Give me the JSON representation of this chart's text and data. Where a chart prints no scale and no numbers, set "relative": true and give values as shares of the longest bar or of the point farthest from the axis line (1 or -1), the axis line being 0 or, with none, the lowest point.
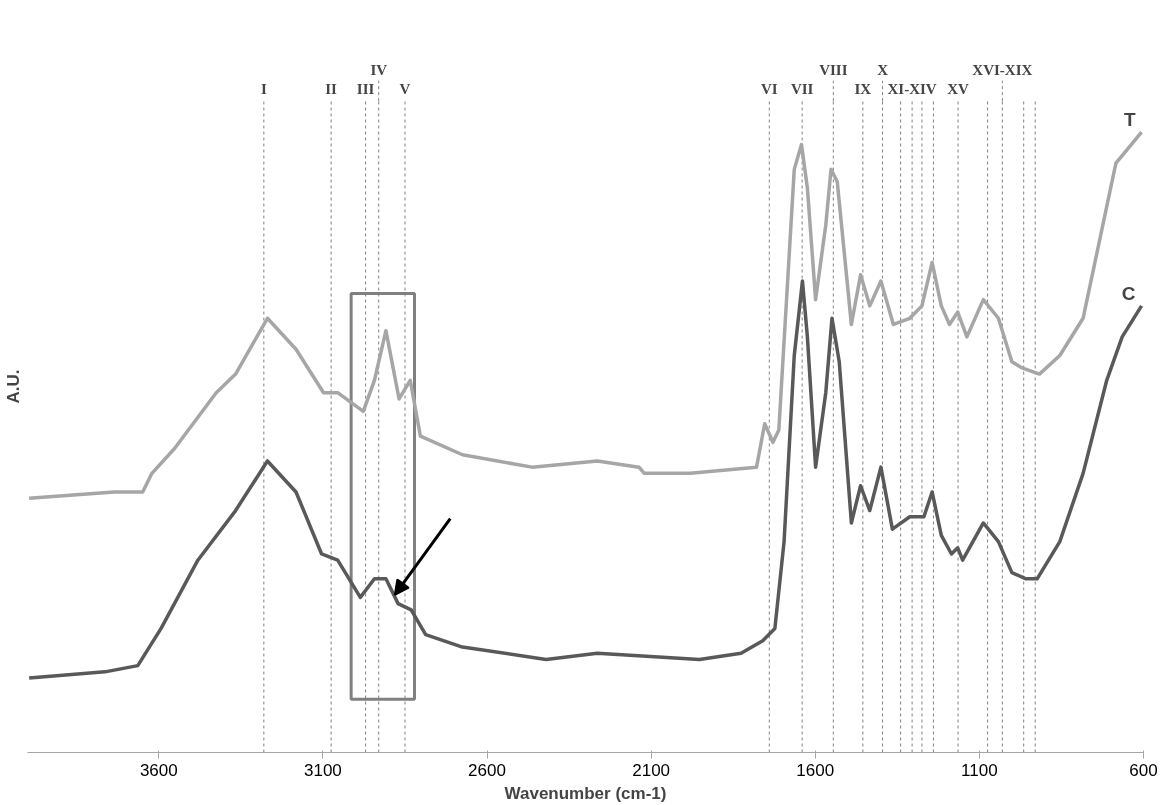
{
  "chart_data": {
    "type": "line",
    "relative": true,
    "xlabel": "Wavenumber (cm-1)",
    "ylabel": "A.U.",
    "xlim": [
      4000,
      600
    ],
    "xticks": [
      3600,
      3100,
      2600,
      2100,
      1600,
      1100,
      600
    ],
    "grid": false,
    "legend": false,
    "line_style": "solid",
    "marker": "none",
    "series": [
      {
        "name": "T",
        "color": "#a6a6a6",
        "x": [
          3995,
          3736,
          3649,
          3621,
          3552,
          3425,
          3366,
          3269,
          3182,
          3098,
          3055,
          2977,
          2943,
          2908,
          2868,
          2834,
          2803,
          2675,
          2463,
          2264,
          2137,
          2121,
          1981,
          1779,
          1754,
          1729,
          1711,
          1664,
          1642,
          1624,
          1599,
          1568,
          1552,
          1533,
          1490,
          1462,
          1434,
          1400,
          1362,
          1312,
          1275,
          1244,
          1216,
          1191,
          1166,
          1138,
          1088,
          1042,
          1001,
          970,
          917,
          855,
          784,
          724,
          684,
          653,
          606
        ],
        "values": [
          0.41,
          0.42,
          0.42,
          0.45,
          0.49,
          0.58,
          0.61,
          0.7,
          0.65,
          0.58,
          0.58,
          0.55,
          0.6,
          0.68,
          0.57,
          0.6,
          0.51,
          0.48,
          0.46,
          0.47,
          0.46,
          0.45,
          0.45,
          0.46,
          0.53,
          0.5,
          0.52,
          0.94,
          0.98,
          0.91,
          0.73,
          0.85,
          0.94,
          0.92,
          0.69,
          0.77,
          0.72,
          0.76,
          0.69,
          0.7,
          0.72,
          0.79,
          0.72,
          0.69,
          0.71,
          0.67,
          0.73,
          0.7,
          0.63,
          0.62,
          0.61,
          0.64,
          0.7,
          0.85,
          0.95,
          0.97,
          1.0
        ]
      },
      {
        "name": "C",
        "color": "#595959",
        "x": [
          3995,
          3764,
          3664,
          3593,
          3481,
          3366,
          3269,
          3182,
          3104,
          3055,
          2986,
          2943,
          2908,
          2871,
          2831,
          2787,
          2675,
          2420,
          2264,
          1953,
          1826,
          1760,
          1723,
          1695,
          1664,
          1639,
          1624,
          1599,
          1568,
          1549,
          1527,
          1490,
          1462,
          1434,
          1400,
          1365,
          1312,
          1269,
          1244,
          1216,
          1185,
          1166,
          1151,
          1088,
          1042,
          1001,
          958,
          924,
          855,
          784,
          712,
          665,
          606
        ],
        "values": [
          0.12,
          0.13,
          0.14,
          0.2,
          0.31,
          0.39,
          0.47,
          0.42,
          0.32,
          0.31,
          0.25,
          0.28,
          0.28,
          0.24,
          0.23,
          0.19,
          0.17,
          0.15,
          0.16,
          0.15,
          0.16,
          0.18,
          0.2,
          0.34,
          0.64,
          0.76,
          0.67,
          0.46,
          0.58,
          0.7,
          0.63,
          0.37,
          0.43,
          0.39,
          0.46,
          0.36,
          0.38,
          0.38,
          0.42,
          0.35,
          0.32,
          0.33,
          0.31,
          0.37,
          0.34,
          0.29,
          0.28,
          0.28,
          0.34,
          0.45,
          0.6,
          0.67,
          0.72
        ]
      }
    ],
    "ref_lines": [
      {
        "axis": "x",
        "value": 3280,
        "label": "I"
      },
      {
        "axis": "x",
        "value": 3075,
        "label": "II"
      },
      {
        "axis": "x",
        "value": 2970,
        "label": "III"
      },
      {
        "axis": "x",
        "value": 2930,
        "label": "IV"
      },
      {
        "axis": "x",
        "value": 2850,
        "label": "V"
      },
      {
        "axis": "x",
        "value": 1740,
        "label": "VI"
      },
      {
        "axis": "x",
        "value": 1640,
        "label": "VII"
      },
      {
        "axis": "x",
        "value": 1545,
        "label": "VIII"
      },
      {
        "axis": "x",
        "value": 1455,
        "label": "IX"
      },
      {
        "axis": "x",
        "value": 1395,
        "label": "X"
      },
      {
        "axis": "x",
        "value": 1340,
        "label": null
      },
      {
        "axis": "x",
        "value": 1305,
        "label": "XI-XIV"
      },
      {
        "axis": "x",
        "value": 1275,
        "label": null
      },
      {
        "axis": "x",
        "value": 1240,
        "label": null
      },
      {
        "axis": "x",
        "value": 1165,
        "label": "XV"
      },
      {
        "axis": "x",
        "value": 1075,
        "label": null
      },
      {
        "axis": "x",
        "value": 1030,
        "label": "XVI-XIX"
      },
      {
        "axis": "x",
        "value": 965,
        "label": null
      },
      {
        "axis": "x",
        "value": 930,
        "label": null
      }
    ]
  }
}
